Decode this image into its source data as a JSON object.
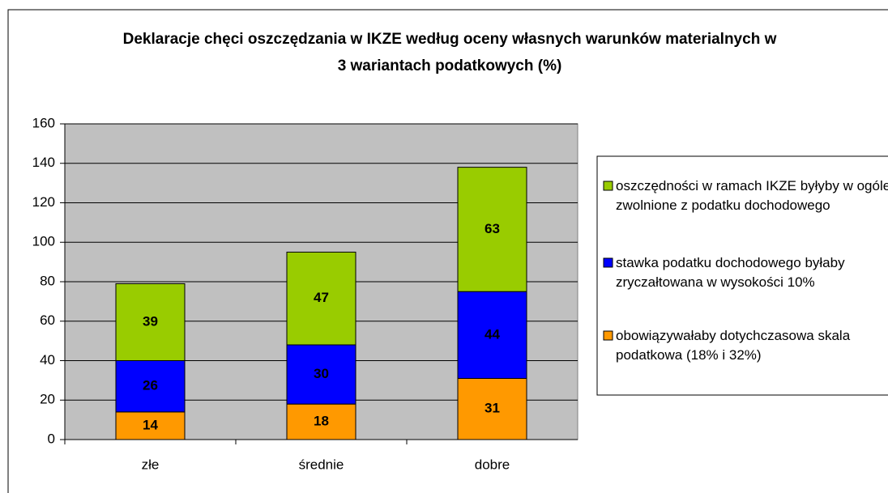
{
  "chart_data": {
    "type": "stacked-bar",
    "title": "Deklaracje chęci oszczędzania w IKZE według oceny własnych warunków materialnych w 3 wariantach podatkowych (%)",
    "categories": [
      "złe",
      "średnie",
      "dobre"
    ],
    "series": [
      {
        "name": "obowiązywałaby dotychczasowa skala podatkowa (18% i 32%)",
        "color": "#ff9900",
        "values": [
          14,
          18,
          31
        ]
      },
      {
        "name": "stawka podatku dochodowego byłaby zryczałtowana w wysokości 10%",
        "color": "#0000ff",
        "values": [
          26,
          30,
          44
        ]
      },
      {
        "name": "oszczędności w ramach IKZE byłyby w ogóle zwolnione z podatku dochodowego",
        "color": "#99cc00",
        "values": [
          39,
          47,
          63
        ]
      }
    ],
    "ylim": [
      0,
      160
    ],
    "yticks": [
      0,
      20,
      40,
      60,
      80,
      100,
      120,
      140,
      160
    ],
    "grid": true,
    "legend": "right"
  }
}
